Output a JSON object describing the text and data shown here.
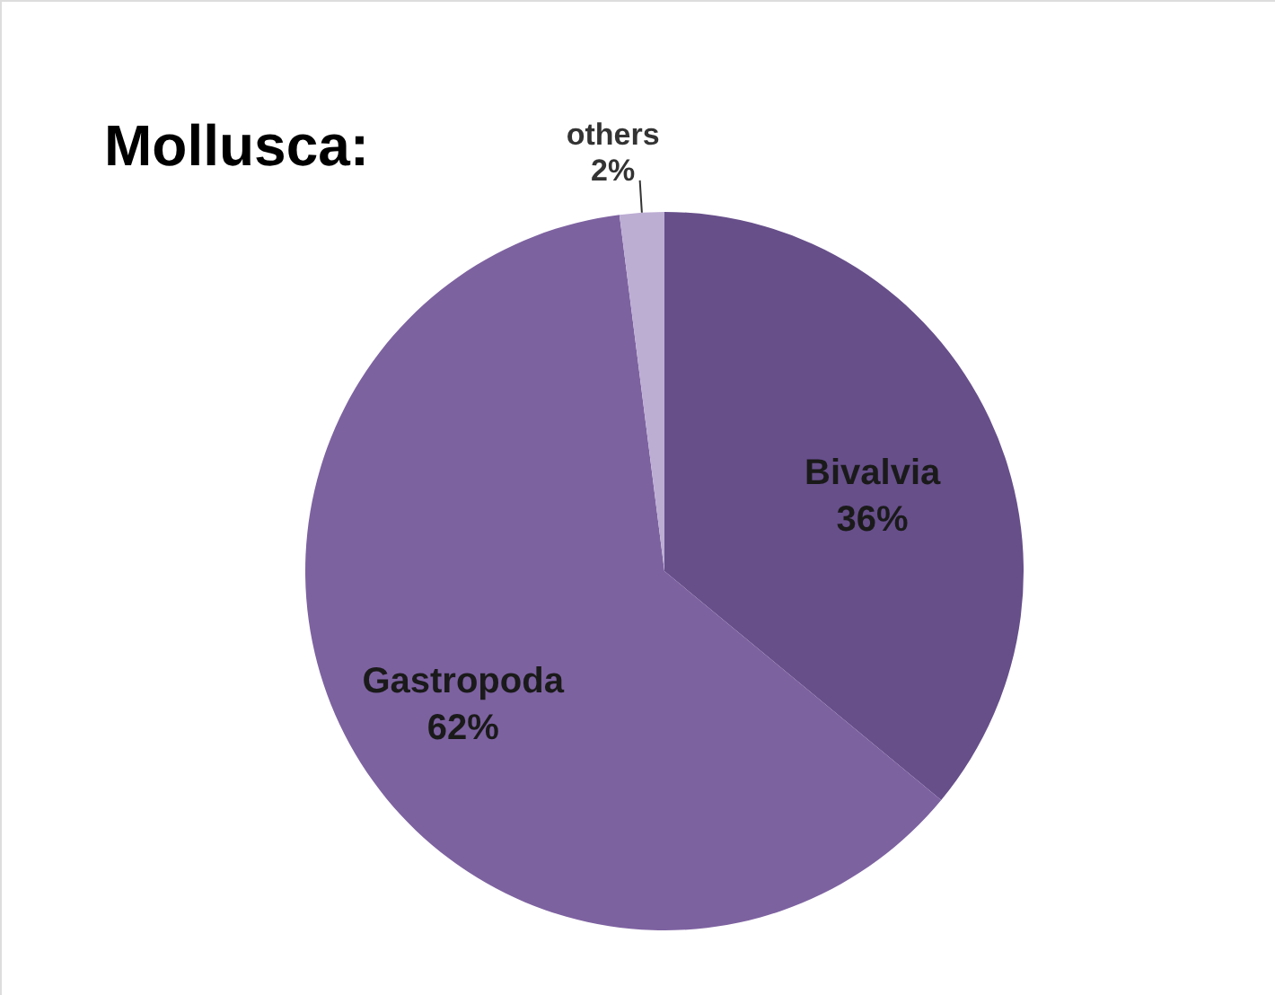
{
  "chart_data": {
    "type": "pie",
    "title": "Mollusca:",
    "categories": [
      "Bivalvia",
      "Gastropoda",
      "others"
    ],
    "values": [
      36,
      62,
      2
    ],
    "value_labels": [
      "36%",
      "62%",
      "2%"
    ],
    "colors": [
      "#674f8a",
      "#7d62a0",
      "#bcadd3"
    ]
  }
}
